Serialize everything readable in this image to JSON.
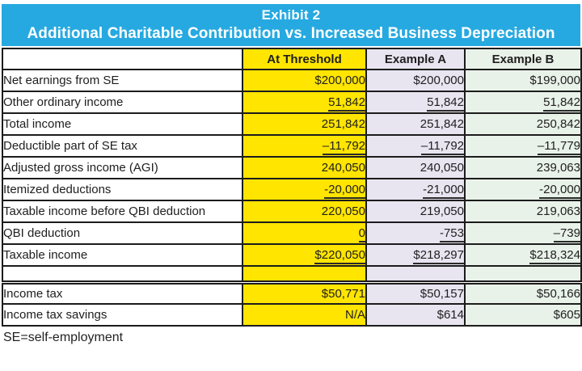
{
  "title": {
    "line1": "Exhibit 2",
    "line2": "Additional Charitable Contribution vs. Increased Business Depreciation"
  },
  "colors": {
    "title_bg": "#26a9e0",
    "title_text": "#ffffff",
    "col_threshold_bg": "#ffe500",
    "col_example_a_bg": "#e8e5f1",
    "col_example_b_bg": "#e9f2e9",
    "border": "#1c1c1c"
  },
  "table": {
    "columns": [
      {
        "key": "label",
        "label": ""
      },
      {
        "key": "threshold",
        "label": "At Threshold"
      },
      {
        "key": "example_a",
        "label": "Example A"
      },
      {
        "key": "example_b",
        "label": "Example B"
      }
    ],
    "rows": [
      {
        "label": "Net earnings from SE",
        "threshold": "$200,000",
        "example_a": "$200,000",
        "example_b": "$199,000",
        "underline": false,
        "spacer": false
      },
      {
        "label": "Other ordinary income",
        "threshold": "51,842",
        "example_a": "51,842",
        "example_b": "51,842",
        "underline": true,
        "spacer": false
      },
      {
        "label": "Total income",
        "threshold": "251,842",
        "example_a": "251,842",
        "example_b": "250,842",
        "underline": false,
        "spacer": false
      },
      {
        "label": "Deductible part of SE tax",
        "threshold": "–11,792",
        "example_a": "–11,792",
        "example_b": "–11,779",
        "underline": true,
        "spacer": false
      },
      {
        "label": "Adjusted gross income (AGI)",
        "threshold": "240,050",
        "example_a": "240,050",
        "example_b": "239,063",
        "underline": false,
        "spacer": false
      },
      {
        "label": "Itemized deductions",
        "threshold": "-20,000",
        "example_a": "-21,000",
        "example_b": "-20,000",
        "underline": true,
        "spacer": false
      },
      {
        "label": "Taxable income before QBI deduction",
        "threshold": "220,050",
        "example_a": "219,050",
        "example_b": "219,063",
        "underline": false,
        "spacer": false
      },
      {
        "label": "QBI deduction",
        "threshold": "0",
        "example_a": "-753",
        "example_b": "–739",
        "underline": true,
        "spacer": false
      },
      {
        "label": "Taxable income",
        "threshold": "$220,050",
        "example_a": "$218,297",
        "example_b": "$218,324",
        "underline": true,
        "spacer": false
      },
      {
        "label": "",
        "threshold": "",
        "example_a": "",
        "example_b": "",
        "underline": false,
        "spacer": true
      },
      {
        "label": "Income tax",
        "threshold": "$50,771",
        "example_a": "$50,157",
        "example_b": "$50,166",
        "underline": false,
        "spacer": false
      },
      {
        "label": "Income tax savings",
        "threshold": "N/A",
        "example_a": "$614",
        "example_b": "$605",
        "underline": false,
        "spacer": false
      }
    ]
  },
  "footnote": "SE=self-employment"
}
